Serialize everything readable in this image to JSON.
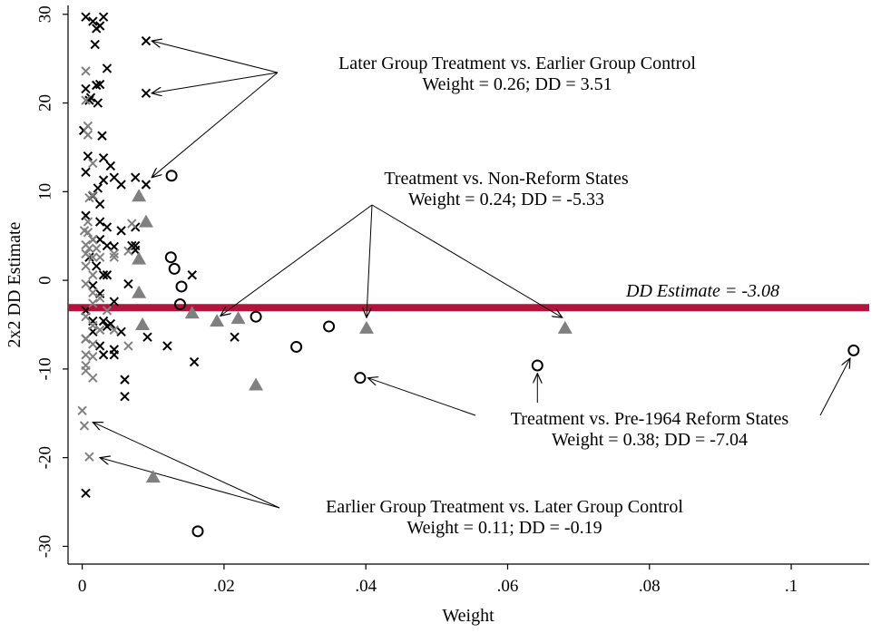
{
  "chart_data": {
    "type": "scatter",
    "xlabel": "Weight",
    "ylabel": "2x2 DD Estimate",
    "xlim": [
      -0.002,
      0.111
    ],
    "ylim": [
      -32,
      31
    ],
    "x_ticks": [
      {
        "value": 0,
        "label": "0"
      },
      {
        "value": 0.02,
        "label": ".02"
      },
      {
        "value": 0.04,
        "label": ".04"
      },
      {
        "value": 0.06,
        "label": ".06"
      },
      {
        "value": 0.08,
        "label": ".08"
      },
      {
        "value": 0.1,
        "label": ".1"
      }
    ],
    "y_ticks": [
      {
        "value": -30,
        "label": "-30"
      },
      {
        "value": -20,
        "label": "-20"
      },
      {
        "value": -10,
        "label": "-10"
      },
      {
        "value": 0,
        "label": "0"
      },
      {
        "value": 10,
        "label": "10"
      },
      {
        "value": 20,
        "label": "20"
      },
      {
        "value": 30,
        "label": "30"
      }
    ],
    "grid": false,
    "colors": {
      "dd_line": "#b5123c",
      "gray_marker": "#808080",
      "black_marker": "#000000"
    },
    "dd_line": {
      "y": -3.08,
      "label": "DD Estimate = -3.08"
    },
    "series": [
      {
        "marker": "x",
        "color": "#000000",
        "points": [
          [
            0.0005,
            29.7
          ],
          [
            0.0015,
            29.2
          ],
          [
            0.002,
            28.4
          ],
          [
            0.0025,
            28.7
          ],
          [
            0.003,
            29.7
          ],
          [
            0.0018,
            26.6
          ],
          [
            0.0005,
            21.6
          ],
          [
            0.0012,
            20.6
          ],
          [
            0.002,
            22.0
          ],
          [
            0.0025,
            22.1
          ],
          [
            0.0022,
            20.0
          ],
          [
            0.001,
            20.3
          ],
          [
            0.0035,
            23.9
          ],
          [
            0.0002,
            16.9
          ],
          [
            0.0028,
            16.3
          ],
          [
            0.0008,
            14.0
          ],
          [
            0.003,
            13.8
          ],
          [
            0.0005,
            12.2
          ],
          [
            0.004,
            12.9
          ],
          [
            0.0045,
            11.6
          ],
          [
            0.003,
            11.3
          ],
          [
            0.0055,
            10.8
          ],
          [
            0.0075,
            11.6
          ],
          [
            0.0022,
            10.4
          ],
          [
            0.0015,
            9.5
          ],
          [
            0.0025,
            8.6
          ],
          [
            0.0005,
            7.3
          ],
          [
            0.0035,
            6.0
          ],
          [
            0.0025,
            6.6
          ],
          [
            0.0055,
            5.6
          ],
          [
            0.0075,
            6.0
          ],
          [
            0.0015,
            4.6
          ],
          [
            0.001,
            2.6
          ],
          [
            0.0025,
            4.6
          ],
          [
            0.0035,
            3.9
          ],
          [
            0.0045,
            3.8
          ],
          [
            0.007,
            3.9
          ],
          [
            0.0075,
            3.4
          ],
          [
            0.002,
            1.6
          ],
          [
            0.003,
            0.6
          ],
          [
            0.0035,
            0.6
          ],
          [
            0.0015,
            -0.6
          ],
          [
            0.0025,
            -1.5
          ],
          [
            0.0045,
            -2.4
          ],
          [
            0.0065,
            -0.4
          ],
          [
            0.0005,
            -3.4
          ],
          [
            0.0015,
            -4.6
          ],
          [
            0.003,
            -4.6
          ],
          [
            0.004,
            -4.9
          ],
          [
            0.0015,
            -5.8
          ],
          [
            0.0035,
            -5.2
          ],
          [
            0.0055,
            -5.8
          ],
          [
            0.0005,
            -6.6
          ],
          [
            0.0025,
            -7.4
          ],
          [
            0.0045,
            -7.8
          ],
          [
            0.003,
            -8.4
          ],
          [
            0.0045,
            -8.4
          ],
          [
            0.006,
            -11.2
          ],
          [
            0.006,
            -13.1
          ],
          [
            0.0005,
            -24.0
          ],
          [
            0.009,
            27.0
          ],
          [
            0.009,
            21.1
          ],
          [
            0.009,
            10.8
          ],
          [
            0.0075,
            3.9
          ],
          [
            0.0092,
            -6.4
          ],
          [
            0.012,
            -7.4
          ],
          [
            0.0155,
            0.6
          ],
          [
            0.0158,
            -9.2
          ],
          [
            0.0215,
            -6.4
          ]
        ]
      },
      {
        "marker": "x",
        "color": "#808080",
        "points": [
          [
            0.0005,
            23.6
          ],
          [
            0.0005,
            20.3
          ],
          [
            0.0008,
            17.4
          ],
          [
            0.0008,
            16.4
          ],
          [
            0.0015,
            13.2
          ],
          [
            0.0015,
            9.6
          ],
          [
            0.001,
            9.3
          ],
          [
            0.0008,
            6.6
          ],
          [
            0.0003,
            5.6
          ],
          [
            0.0008,
            5.4
          ],
          [
            0.0015,
            4.6
          ],
          [
            0.0005,
            4.0
          ],
          [
            0.0005,
            3.0
          ],
          [
            0.001,
            3.6
          ],
          [
            0.0015,
            2.6
          ],
          [
            0.002,
            3.6
          ],
          [
            0.0025,
            2.6
          ],
          [
            0.0005,
            1.6
          ],
          [
            0.0015,
            0.6
          ],
          [
            0.0005,
            -0.4
          ],
          [
            0.0015,
            -1.4
          ],
          [
            0.0025,
            -2.0
          ],
          [
            0.0015,
            -2.6
          ],
          [
            0.0035,
            -3.4
          ],
          [
            0.0005,
            -4.1
          ],
          [
            0.0015,
            -5.1
          ],
          [
            0.0025,
            -5.6
          ],
          [
            0.0005,
            -6.6
          ],
          [
            0.0015,
            -7.2
          ],
          [
            0.0005,
            -8.4
          ],
          [
            0.0015,
            -8.6
          ],
          [
            0.0005,
            -9.6
          ],
          [
            0.0005,
            -10.2
          ],
          [
            0.0015,
            -11.0
          ],
          [
            0.0045,
            3.0
          ],
          [
            0.0045,
            2.6
          ],
          [
            0.007,
            6.4
          ],
          [
            0.0065,
            3.3
          ],
          [
            0.0045,
            -5.6
          ],
          [
            0.0065,
            -7.4
          ],
          [
            0.0,
            -14.7
          ],
          [
            0.0003,
            -16.4
          ],
          [
            0.001,
            -19.9
          ]
        ]
      },
      {
        "marker": "triangle",
        "color": "#808080",
        "points": [
          [
            0.008,
            9.5
          ],
          [
            0.009,
            6.6
          ],
          [
            0.008,
            2.4
          ],
          [
            0.008,
            -1.4
          ],
          [
            0.0085,
            -5.0
          ],
          [
            0.0155,
            -3.7
          ],
          [
            0.019,
            -4.6
          ],
          [
            0.022,
            -4.3
          ],
          [
            0.0245,
            -11.8
          ],
          [
            0.01,
            -22.2
          ],
          [
            0.0401,
            -5.4
          ],
          [
            0.0681,
            -5.4
          ]
        ]
      },
      {
        "marker": "circle",
        "color": "#000000",
        "points": [
          [
            0.0126,
            11.8
          ],
          [
            0.0125,
            2.6
          ],
          [
            0.013,
            1.3
          ],
          [
            0.014,
            -0.7
          ],
          [
            0.0138,
            -2.7
          ],
          [
            0.0245,
            -4.1
          ],
          [
            0.0302,
            -7.5
          ],
          [
            0.0348,
            -5.2
          ],
          [
            0.0392,
            -11.0
          ],
          [
            0.0642,
            -9.6
          ],
          [
            0.1088,
            -7.9
          ],
          [
            0.0163,
            -28.3
          ]
        ]
      }
    ],
    "annotations": [
      {
        "lines": [
          "Later Group Treatment vs. Earlier Group Control",
          "Weight = 0.26; DD = 3.51"
        ],
        "arrow_targets": [
          [
            0.0098,
            27.0
          ],
          [
            0.0098,
            21.1
          ],
          [
            0.0098,
            11.6
          ]
        ]
      },
      {
        "lines": [
          "Treatment vs. Non-Reform States",
          "Weight = 0.24; DD = -5.33"
        ],
        "arrow_targets": [
          [
            0.0195,
            -4.0
          ],
          [
            0.0401,
            -4.2
          ],
          [
            0.0677,
            -4.2
          ]
        ]
      },
      {
        "lines": [
          "Treatment vs. Pre-1964 Reform States",
          "Weight = 0.38; DD = -7.04"
        ],
        "arrow_targets": [
          [
            0.0403,
            -11.0
          ],
          [
            0.0642,
            -10.5
          ],
          [
            0.1083,
            -8.8
          ]
        ]
      },
      {
        "lines": [
          "Earlier Group Treatment vs. Later Group Control",
          "Weight = 0.11; DD = -0.19"
        ],
        "arrow_targets": [
          [
            0.0015,
            -16.0
          ],
          [
            0.0025,
            -20.0
          ]
        ]
      }
    ]
  }
}
